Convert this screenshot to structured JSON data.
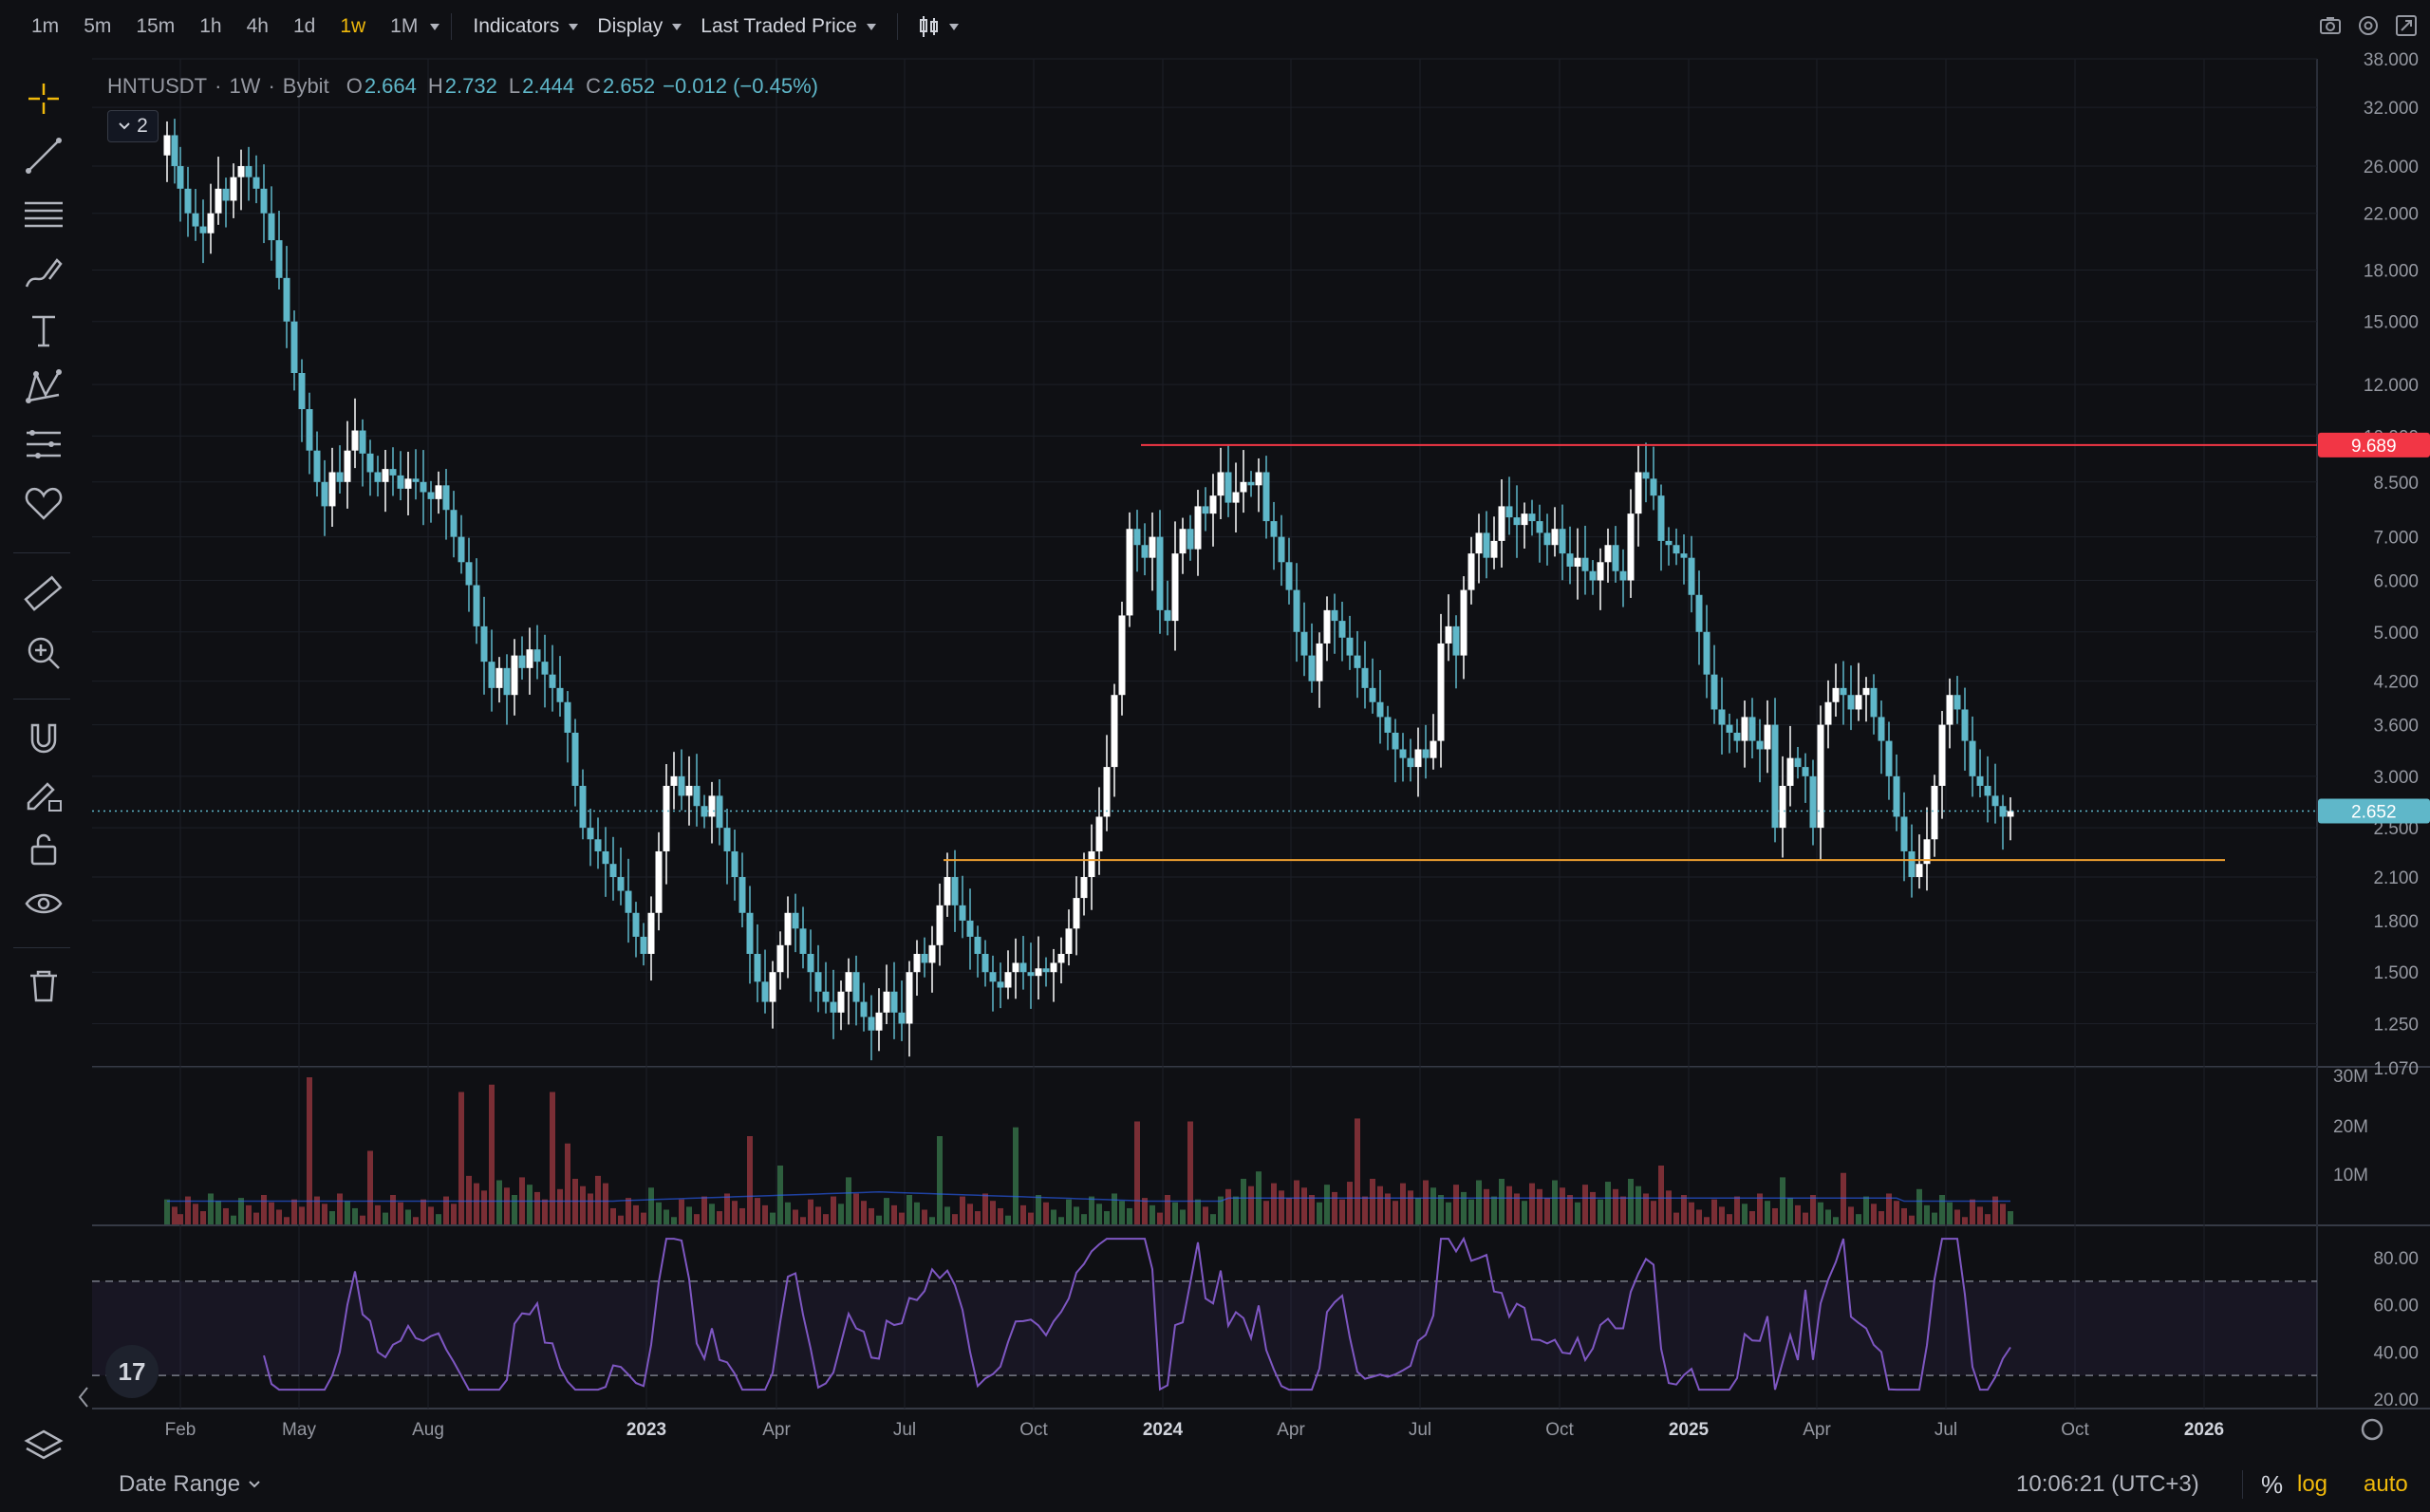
{
  "toolbar": {
    "timeframes": [
      "1m",
      "5m",
      "15m",
      "1h",
      "4h",
      "1d",
      "1w",
      "1M"
    ],
    "active_timeframe": "1w",
    "indicators_label": "Indicators",
    "display_label": "Display",
    "price_type_label": "Last Traded Price"
  },
  "legend": {
    "symbol": "HNTUSDT",
    "interval": "1W",
    "exchange": "Bybit",
    "open_key": "O",
    "open": "2.664",
    "high_key": "H",
    "high": "2.732",
    "low_key": "L",
    "low": "2.444",
    "close_key": "C",
    "close": "2.652",
    "change": "−0.012 (−0.45%)",
    "collapse_count": "2"
  },
  "chart_data": {
    "type": "candlestick",
    "price_scale": "log",
    "price_ticks": [
      "38.000",
      "32.000",
      "26.000",
      "22.000",
      "18.000",
      "15.000",
      "12.000",
      "10.000",
      "8.500",
      "7.000",
      "6.000",
      "5.000",
      "4.200",
      "3.600",
      "3.000",
      "2.500",
      "2.100",
      "1.800",
      "1.500",
      "1.250",
      "1.070"
    ],
    "time_ticks": [
      "Feb",
      "May",
      "Aug",
      "2023",
      "Apr",
      "Jul",
      "Oct",
      "2024",
      "Apr",
      "Jul",
      "Oct",
      "2025",
      "Apr",
      "Jul",
      "Oct",
      "2026"
    ],
    "bold_time_ticks": [
      "2023",
      "2024",
      "2025",
      "2026"
    ],
    "last_price_label": "2.652",
    "resistance_label": "9.689",
    "resistance_level": 9.689,
    "support_level": 2.23,
    "volume_ticks": [
      "30M",
      "20M",
      "10M"
    ],
    "rsi_ticks": [
      "80.00",
      "60.00",
      "40.00",
      "20.00"
    ],
    "rsi_bands": [
      70,
      30
    ],
    "colors": {
      "up": "#ffffff",
      "down": "#5fb7c9",
      "resistance": "#f23645",
      "support": "#f0a030",
      "rsi": "#7e57c2",
      "vol_up": "#2e5f3e",
      "vol_down": "#7a2e35"
    }
  },
  "bottom": {
    "date_range_label": "Date Range",
    "clock": "10:06:21 (UTC+3)",
    "percent_label": "%",
    "log_label": "log",
    "auto_label": "auto"
  }
}
